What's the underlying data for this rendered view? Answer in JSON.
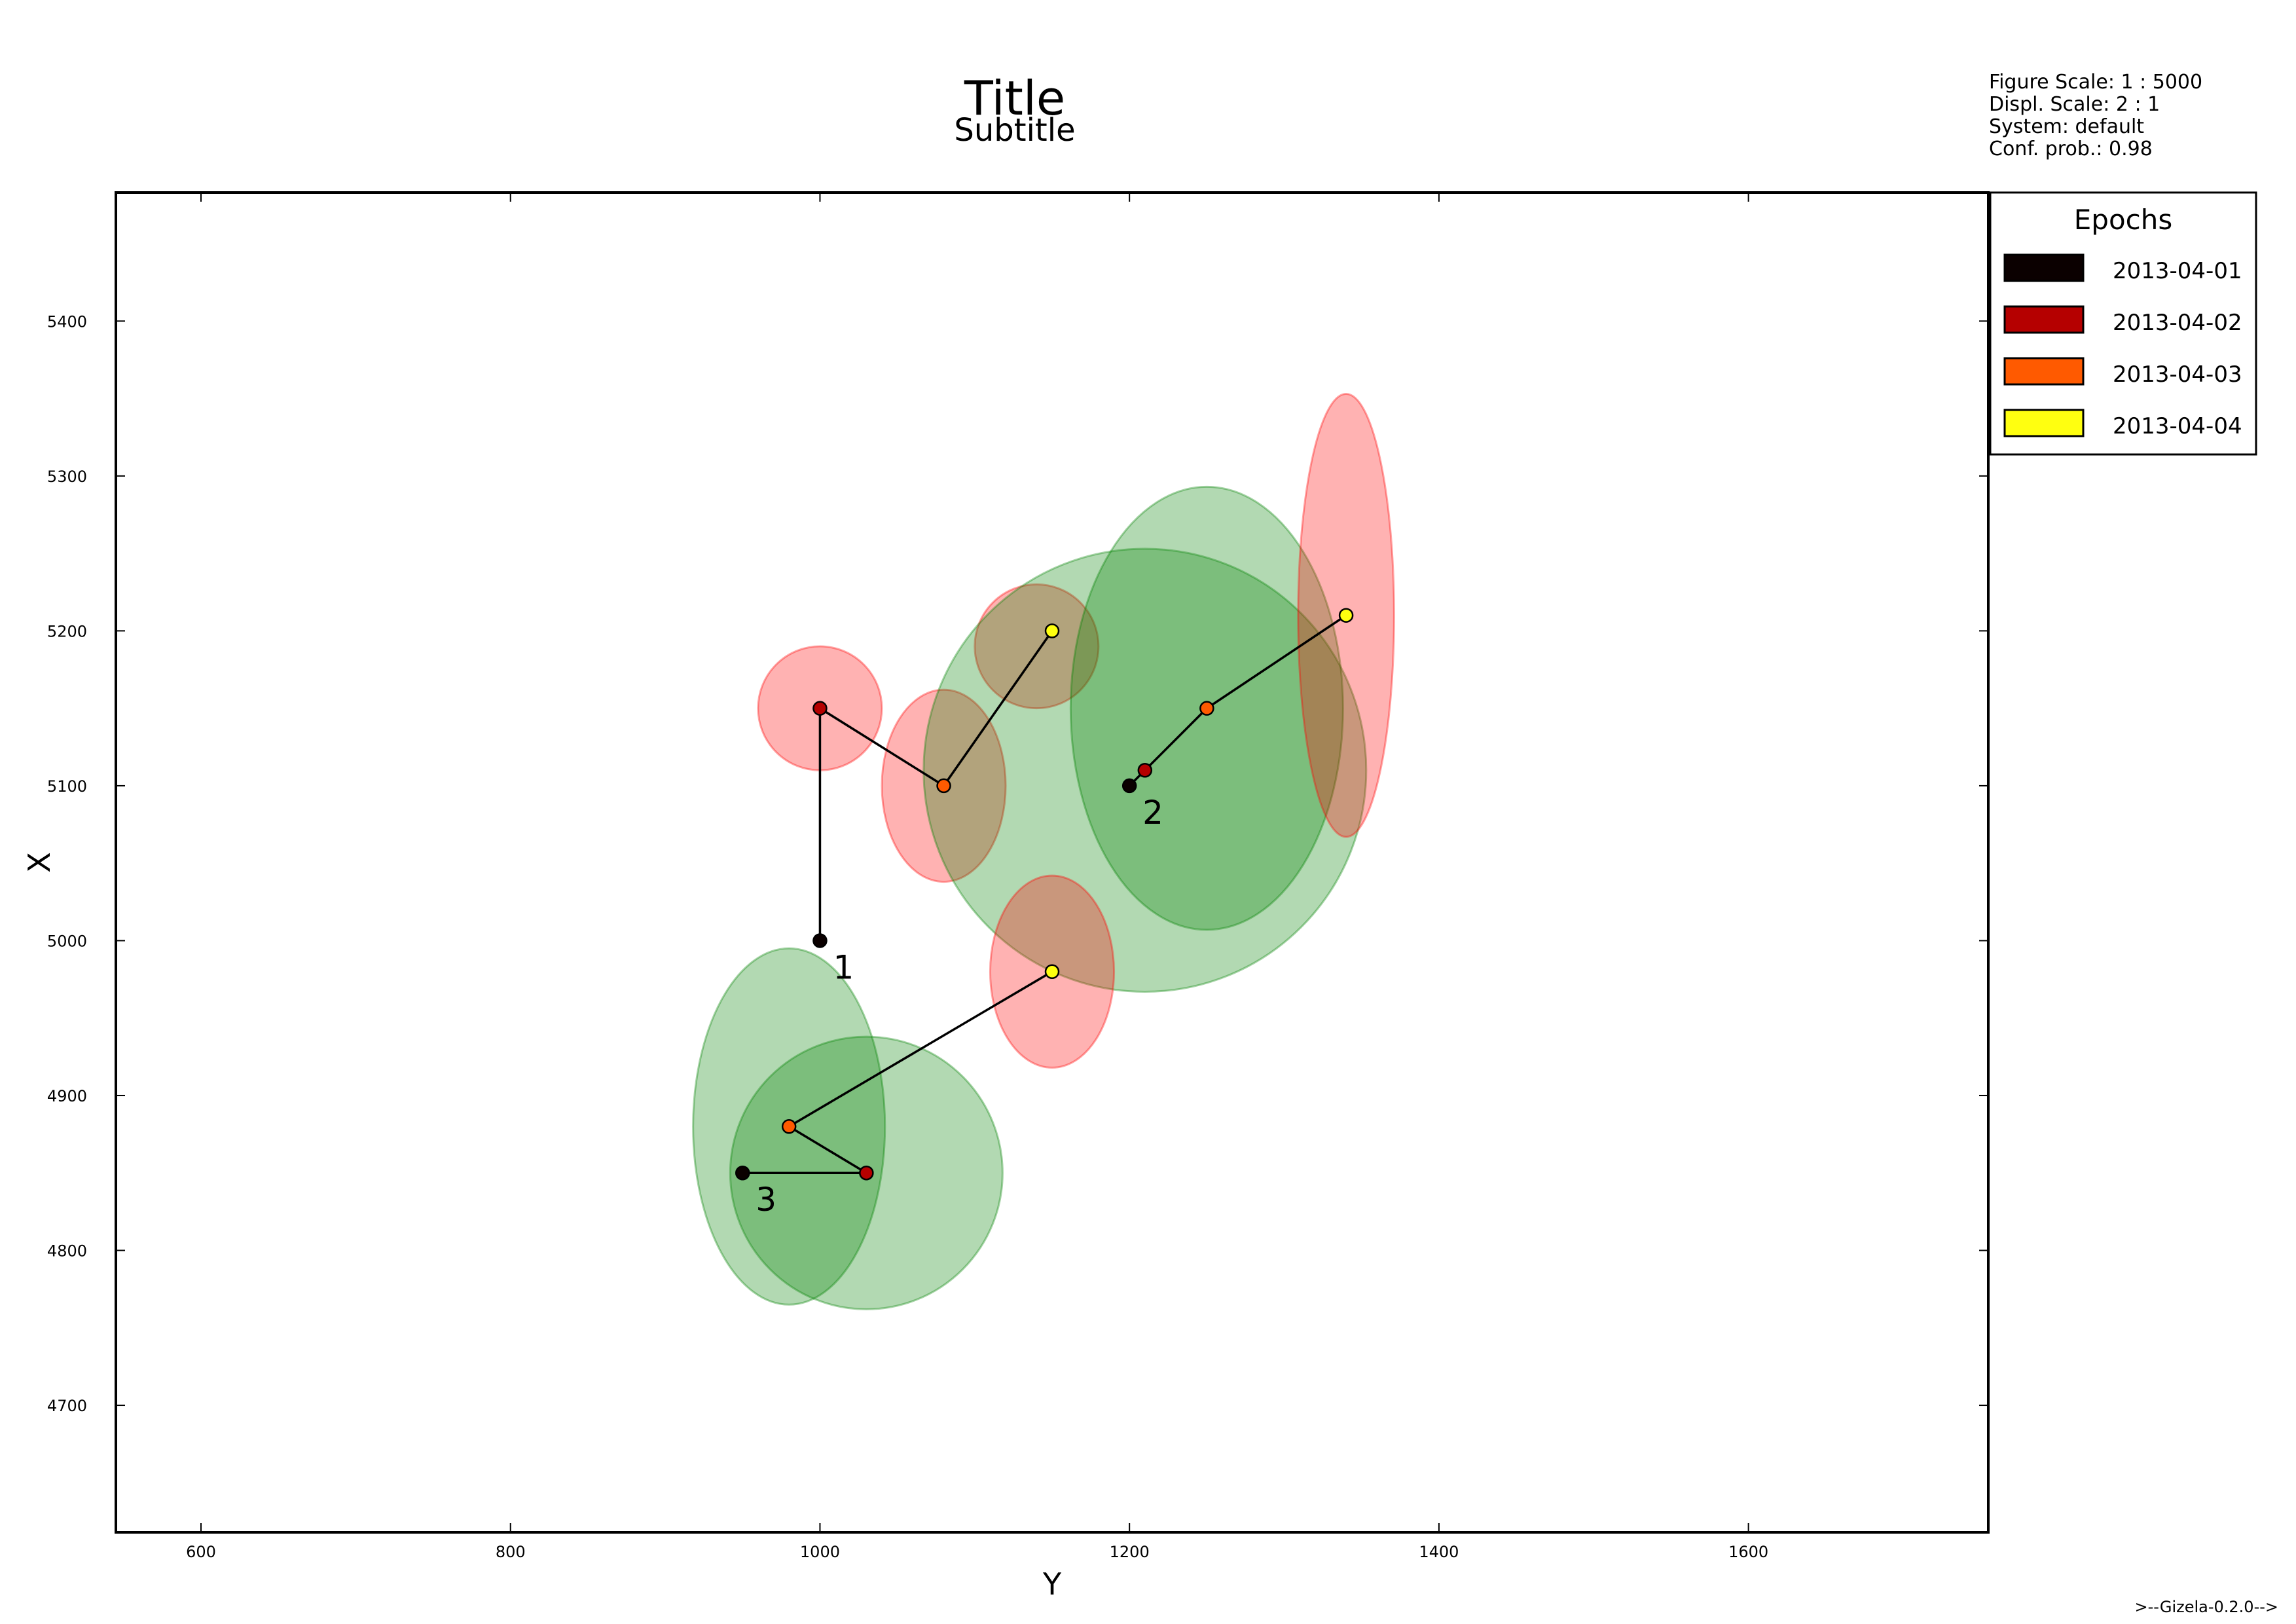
{
  "chart_data": {
    "type": "scatter",
    "title": "Title",
    "subtitle": "Subtitle",
    "xlabel": "Y",
    "ylabel": "X",
    "xlim": [
      545,
      1755
    ],
    "ylim": [
      4618,
      5483
    ],
    "x_ticks": [
      600,
      800,
      1000,
      1200,
      1400,
      1600
    ],
    "y_ticks": [
      4700,
      4800,
      4900,
      5000,
      5100,
      5200,
      5300,
      5400
    ],
    "grid": false,
    "legend_position": "top-right, outside plot",
    "info_lines": [
      "Figure Scale: 1 : 5000",
      "Displ. Scale: 2 : 1",
      "System: default",
      "Conf. prob.: 0.98"
    ],
    "footer": ">--Gizela-0.2.0-->",
    "legend": {
      "title": "Epochs",
      "entries": [
        {
          "label": "2013-04-01",
          "color": "#0b0000"
        },
        {
          "label": "2013-04-02",
          "color": "#b50000"
        },
        {
          "label": "2013-04-03",
          "color": "#ff5a00"
        },
        {
          "label": "2013-04-04",
          "color": "#ffff10"
        }
      ]
    },
    "epoch_colors": [
      "#0b0000",
      "#b50000",
      "#ff5a00",
      "#ffff10"
    ],
    "ellipse_colors": {
      "green": {
        "fill": "#008000",
        "stroke": "#008000"
      },
      "red": {
        "fill": "#ff0000",
        "stroke": "#ff0000"
      }
    },
    "series": [
      {
        "label": "1",
        "points": [
          {
            "x": 1000,
            "y": 5000,
            "epoch": 0
          },
          {
            "x": 1000,
            "y": 5150,
            "epoch": 1,
            "ellipse": {
              "rx": 40,
              "ry": 40,
              "color": "red"
            }
          },
          {
            "x": 1080,
            "y": 5100,
            "epoch": 2,
            "ellipse": {
              "rx": 40,
              "ry": 62,
              "color": "red"
            }
          },
          {
            "x": 1150,
            "y": 5200,
            "epoch": 3,
            "ellipse": {
              "cx": 1140,
              "cy": 5190,
              "rx": 40,
              "ry": 40,
              "color": "red"
            }
          }
        ]
      },
      {
        "label": "2",
        "points": [
          {
            "x": 1200,
            "y": 5100,
            "epoch": 0
          },
          {
            "x": 1210,
            "y": 5110,
            "epoch": 1,
            "ellipse": {
              "rx": 143,
              "ry": 143,
              "color": "green"
            }
          },
          {
            "x": 1250,
            "y": 5150,
            "epoch": 2,
            "ellipse": {
              "rx": 88,
              "ry": 143,
              "color": "green"
            }
          },
          {
            "x": 1340,
            "y": 5210,
            "epoch": 3,
            "ellipse": {
              "rx": 31,
              "ry": 143,
              "color": "red"
            }
          }
        ]
      },
      {
        "label": "3",
        "points": [
          {
            "x": 950,
            "y": 4850,
            "epoch": 0
          },
          {
            "x": 1030,
            "y": 4850,
            "epoch": 1,
            "ellipse": {
              "rx": 88,
              "ry": 88,
              "color": "green"
            }
          },
          {
            "x": 980,
            "y": 4880,
            "epoch": 2,
            "ellipse": {
              "rx": 62,
              "ry": 115,
              "color": "green"
            }
          },
          {
            "x": 1150,
            "y": 4980,
            "epoch": 3,
            "ellipse": {
              "rx": 40,
              "ry": 62,
              "color": "red"
            }
          }
        ]
      }
    ]
  }
}
